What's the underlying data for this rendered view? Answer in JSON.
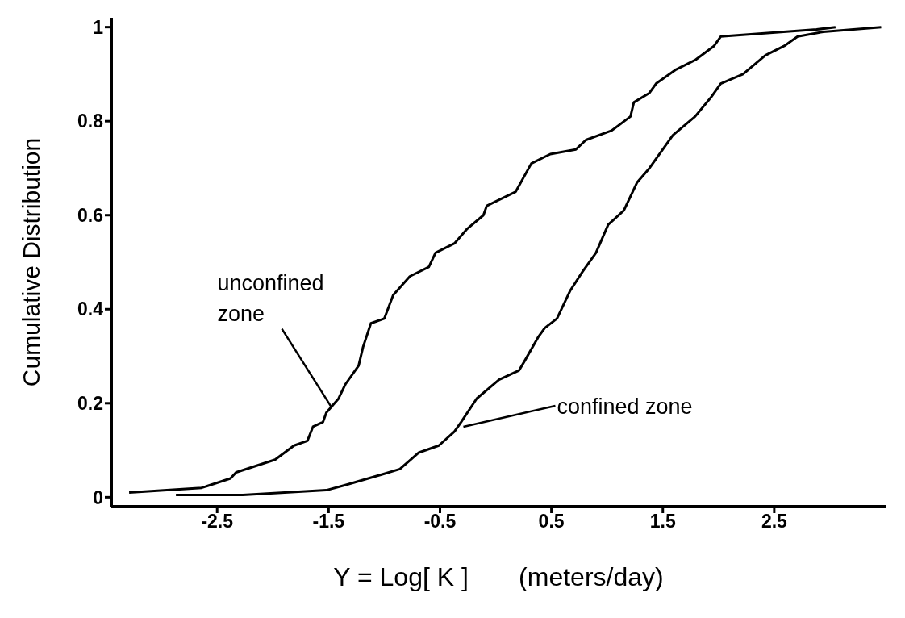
{
  "chart_data": {
    "type": "line",
    "xlabel": "Y = Log[ K ]       (meters/day)",
    "ylabel": "Cumulative Distribution",
    "xlim": [
      -3.45,
      3.5
    ],
    "ylim": [
      -0.02,
      1.02
    ],
    "xticks": [
      -2.5,
      -1.5,
      -0.5,
      0.5,
      1.5,
      2.5
    ],
    "yticks": [
      0,
      0.2,
      0.4,
      0.6,
      0.8,
      1
    ],
    "marker": "none",
    "line_style": "solid",
    "series": [
      {
        "color": "#000000",
        "x": [
          -3.29,
          -2.64,
          -2.38,
          -2.33,
          -1.98,
          -1.81,
          -1.69,
          -1.64,
          -1.55,
          -1.52,
          -1.41,
          -1.35,
          -1.23,
          -1.19,
          -1.12,
          -1.0,
          -0.92,
          -0.77,
          -0.6,
          -0.54,
          -0.37,
          -0.26,
          -0.11,
          -0.08,
          0.18,
          0.32,
          0.49,
          0.72,
          0.81,
          1.04,
          1.21,
          1.24,
          1.38,
          1.44,
          1.62,
          1.79,
          1.96,
          2.02,
          2.88,
          3.05
        ],
        "values": [
          0.01,
          0.02,
          0.04,
          0.053,
          0.08,
          0.11,
          0.12,
          0.15,
          0.16,
          0.18,
          0.21,
          0.24,
          0.28,
          0.32,
          0.37,
          0.38,
          0.43,
          0.47,
          0.49,
          0.52,
          0.54,
          0.57,
          0.6,
          0.62,
          0.65,
          0.71,
          0.73,
          0.74,
          0.76,
          0.78,
          0.81,
          0.84,
          0.86,
          0.88,
          0.91,
          0.93,
          0.96,
          0.98,
          0.995,
          1.0
        ]
      },
      {
        "color": "#000000",
        "x": [
          -2.87,
          -2.27,
          -1.52,
          -1.35,
          -1.0,
          -0.86,
          -0.69,
          -0.51,
          -0.37,
          -0.31,
          -0.17,
          0.03,
          0.21,
          0.26,
          0.38,
          0.44,
          0.55,
          0.67,
          0.78,
          0.9,
          1.01,
          1.15,
          1.27,
          1.38,
          1.59,
          1.79,
          1.93,
          2.02,
          2.22,
          2.42,
          2.59,
          2.71,
          2.94,
          3.46
        ],
        "values": [
          0.005,
          0.005,
          0.015,
          0.026,
          0.05,
          0.06,
          0.095,
          0.11,
          0.14,
          0.16,
          0.21,
          0.25,
          0.27,
          0.29,
          0.34,
          0.36,
          0.38,
          0.44,
          0.48,
          0.52,
          0.58,
          0.61,
          0.67,
          0.7,
          0.77,
          0.81,
          0.85,
          0.88,
          0.9,
          0.94,
          0.96,
          0.98,
          0.99,
          1.0
        ]
      }
    ],
    "annotations": [
      {
        "text": "unconfined\nzone",
        "x": -1.47,
        "y": 0.19
      },
      {
        "text": "confined zone",
        "x": -0.29,
        "y": 0.15
      }
    ]
  }
}
